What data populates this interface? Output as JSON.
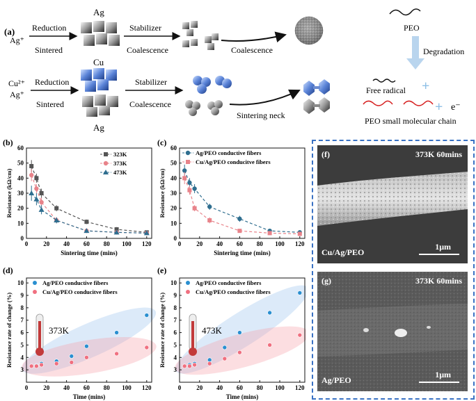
{
  "panel_a": {
    "label": "(a)",
    "row1": {
      "ion": "Ag⁺",
      "step1_top": "Reduction",
      "step1_bottom": "Sintered",
      "metal": "Ag",
      "step2_top": "Stabilizer",
      "step2_bottom": "Coalescence",
      "step3": "Coalescence"
    },
    "row2": {
      "ion1": "Cu²⁺",
      "ion2": "Ag⁺",
      "step1_top": "Reduction",
      "step1_bottom": "Sintered",
      "metal_top": "Cu",
      "metal_bottom": "Ag",
      "step2_top": "Stabilizer",
      "step2_bottom": "Coalescence",
      "step3": "Sintering neck"
    },
    "right": {
      "polymer": "PEO",
      "process": "Degradation",
      "radical": "Free radical",
      "chain": "PEO small molecular chain",
      "electron": "e⁻",
      "plus": "+"
    }
  },
  "panel_f": {
    "label": "(f)",
    "condition": "373K 60mins",
    "sample": "Cu/Ag/PEO",
    "scale": "1μm"
  },
  "panel_g": {
    "label": "(g)",
    "condition": "373K 60mins",
    "sample": "Ag/PEO",
    "scale": "1μm"
  },
  "chart_data": [
    {
      "id": "b",
      "label": "(b)",
      "type": "line",
      "xlabel": "Sintering time (mins)",
      "ylabel": "Resistance (kΩ/cm)",
      "xlim": [
        0,
        125
      ],
      "ylim": [
        0,
        60
      ],
      "xticks": [
        0,
        20,
        40,
        60,
        80,
        100,
        120
      ],
      "yticks": [
        0,
        10,
        20,
        30,
        40,
        50,
        60
      ],
      "series": [
        {
          "name": "323K",
          "color": "#555555",
          "marker": "square",
          "x": [
            5,
            10,
            15,
            30,
            60,
            90,
            120
          ],
          "y": [
            48,
            40,
            30,
            20,
            11,
            6,
            4
          ],
          "err": [
            4,
            3,
            3,
            2,
            1.5,
            1.5,
            1
          ]
        },
        {
          "name": "373K",
          "color": "#e8838a",
          "marker": "circle",
          "x": [
            5,
            10,
            15,
            30,
            60,
            90,
            120
          ],
          "y": [
            42,
            33,
            24,
            12,
            5,
            4,
            3.5
          ],
          "err": [
            4,
            3,
            3,
            2,
            1,
            1,
            1
          ]
        },
        {
          "name": "473K",
          "color": "#2f6e8f",
          "marker": "triangle",
          "x": [
            5,
            10,
            15,
            30,
            60,
            90,
            120
          ],
          "y": [
            30,
            26,
            19,
            12,
            5,
            4,
            3.5
          ],
          "err": [
            5,
            4,
            3,
            2,
            1,
            1,
            1
          ]
        }
      ]
    },
    {
      "id": "c",
      "label": "(c)",
      "type": "line",
      "xlabel": "Sintering time (mins)",
      "ylabel": "Resistance (kΩ/cm)",
      "xlim": [
        0,
        125
      ],
      "ylim": [
        0,
        60
      ],
      "xticks": [
        0,
        20,
        40,
        60,
        80,
        100,
        120
      ],
      "yticks": [
        0,
        10,
        20,
        30,
        40,
        50,
        60
      ],
      "series": [
        {
          "name": "Ag/PEO conductive fibers",
          "color": "#2f6e8f",
          "marker": "circle",
          "x": [
            5,
            10,
            15,
            30,
            60,
            90,
            120
          ],
          "y": [
            45,
            37,
            33,
            21,
            13,
            5,
            4
          ],
          "err": [
            4,
            3,
            3,
            2,
            2,
            1,
            1
          ]
        },
        {
          "name": "Cu/Ag/PEO conducitve fibers",
          "color": "#e8838a",
          "marker": "square",
          "x": [
            5,
            10,
            15,
            30,
            60,
            90,
            120
          ],
          "y": [
            40,
            32,
            20,
            12,
            5,
            3.5,
            3
          ],
          "err": [
            4,
            3,
            2,
            2,
            1,
            1,
            1
          ]
        }
      ]
    },
    {
      "id": "d",
      "label": "(d)",
      "type": "scatter",
      "xlabel": "Time (mins)",
      "ylabel": "Resistance rate of change (%)",
      "xlim": [
        0,
        125
      ],
      "ylim": [
        2,
        10.4
      ],
      "xticks": [
        0,
        20,
        40,
        60,
        80,
        100,
        120
      ],
      "yticks": [
        3,
        4,
        5,
        6,
        7,
        8,
        9,
        10
      ],
      "annotation": "373K",
      "series": [
        {
          "name": "Ag/PEO conductive fibers",
          "color": "#2a8fd0",
          "x": [
            5,
            10,
            15,
            30,
            45,
            60,
            90,
            120
          ],
          "y": [
            3.3,
            3.35,
            3.5,
            3.7,
            4.1,
            4.9,
            6.0,
            7.4
          ]
        },
        {
          "name": "Cu/Ag/PEO conducitve fibers",
          "color": "#f07080",
          "x": [
            5,
            10,
            15,
            30,
            45,
            60,
            90,
            120
          ],
          "y": [
            3.3,
            3.3,
            3.4,
            3.5,
            3.6,
            4.0,
            4.3,
            4.8
          ]
        }
      ]
    },
    {
      "id": "e",
      "label": "(e)",
      "type": "scatter",
      "xlabel": "Time (mins)",
      "ylabel": "Resistance rate of change (%)",
      "xlim": [
        0,
        125
      ],
      "ylim": [
        2,
        10.4
      ],
      "xticks": [
        0,
        20,
        40,
        60,
        80,
        100,
        120
      ],
      "yticks": [
        3,
        4,
        5,
        6,
        7,
        8,
        9,
        10
      ],
      "annotation": "473K",
      "series": [
        {
          "name": "Ag/PEO conductive fibers",
          "color": "#2a8fd0",
          "x": [
            5,
            10,
            15,
            30,
            45,
            60,
            90,
            120
          ],
          "y": [
            3.3,
            3.4,
            3.5,
            3.8,
            4.8,
            6.0,
            7.6,
            9.2
          ]
        },
        {
          "name": "Cu/Ag/PEO conductive fibers",
          "color": "#f07080",
          "x": [
            5,
            10,
            15,
            30,
            45,
            60,
            90,
            120
          ],
          "y": [
            3.3,
            3.3,
            3.4,
            3.5,
            3.9,
            4.4,
            5.0,
            5.8
          ]
        }
      ]
    }
  ]
}
